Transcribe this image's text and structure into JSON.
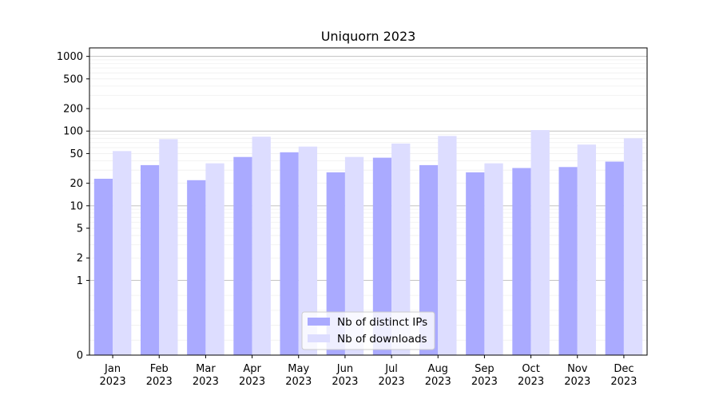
{
  "chart_data": {
    "type": "bar",
    "title": "Uniquorn 2023",
    "xlabel": "",
    "ylabel": "",
    "y_scale": "symlog",
    "ylim": [
      0,
      1300
    ],
    "y_ticks": [
      0,
      1,
      2,
      5,
      10,
      20,
      50,
      100,
      200,
      500,
      1000
    ],
    "grid": "major horizontal lines (1, 10, 100, 1000) and light minor lines",
    "legend_position": "lower center",
    "categories": [
      {
        "month": "Jan",
        "year": "2023"
      },
      {
        "month": "Feb",
        "year": "2023"
      },
      {
        "month": "Mar",
        "year": "2023"
      },
      {
        "month": "Apr",
        "year": "2023"
      },
      {
        "month": "May",
        "year": "2023"
      },
      {
        "month": "Jun",
        "year": "2023"
      },
      {
        "month": "Jul",
        "year": "2023"
      },
      {
        "month": "Aug",
        "year": "2023"
      },
      {
        "month": "Sep",
        "year": "2023"
      },
      {
        "month": "Oct",
        "year": "2023"
      },
      {
        "month": "Nov",
        "year": "2023"
      },
      {
        "month": "Dec",
        "year": "2023"
      }
    ],
    "series": [
      {
        "name": "Nb of distinct IPs",
        "color": "#aaaaff",
        "values": [
          23,
          35,
          22,
          45,
          52,
          28,
          44,
          35,
          28,
          32,
          33,
          39
        ]
      },
      {
        "name": "Nb of downloads",
        "color": "#ddddff",
        "values": [
          54,
          78,
          37,
          84,
          62,
          45,
          68,
          86,
          37,
          103,
          66,
          80
        ]
      }
    ]
  }
}
